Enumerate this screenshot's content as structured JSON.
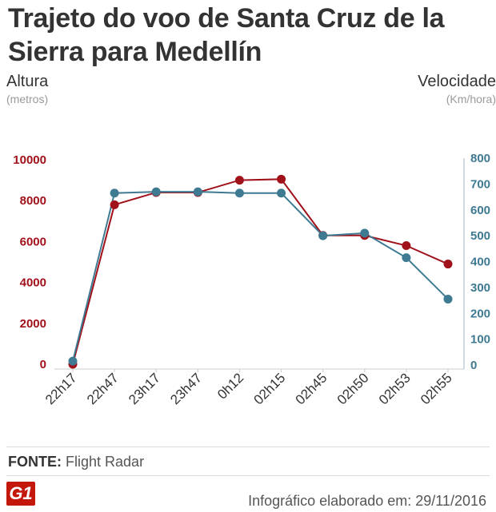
{
  "header": {
    "title": "Trajeto do voo de Santa Cruz de la Sierra para Medellín"
  },
  "chart_data": {
    "type": "line",
    "categories": [
      "22h17",
      "22h47",
      "23h17",
      "23h47",
      "0h12",
      "02h15",
      "02h45",
      "02h50",
      "02h53",
      "02h55"
    ],
    "left_axis": {
      "label": "Altura",
      "unit": "(metros)",
      "ticks": [
        0,
        2000,
        4000,
        6000,
        8000,
        10000
      ],
      "range": [
        0,
        10000
      ],
      "color": "#a0111a"
    },
    "right_axis": {
      "label": "Velocidade",
      "unit": "(Km/hora)",
      "ticks": [
        0,
        100,
        200,
        300,
        400,
        500,
        600,
        700,
        800
      ],
      "range": [
        0,
        800
      ],
      "color": "#3f7a93"
    },
    "series": [
      {
        "axis": "left",
        "color": "#a0111a",
        "values": [
          0,
          7800,
          8400,
          8400,
          9000,
          9050,
          6300,
          6300,
          5800,
          4900
        ]
      },
      {
        "axis": "right",
        "color": "#3f7a93",
        "values": [
          15,
          665,
          670,
          670,
          665,
          665,
          500,
          510,
          415,
          255
        ]
      }
    ],
    "grid": false
  },
  "footer": {
    "source_label": "FONTE:",
    "source_value": "Flight Radar",
    "logo_text": "G1",
    "credit": "Infográfico elaborado em: 29/11/2016"
  }
}
